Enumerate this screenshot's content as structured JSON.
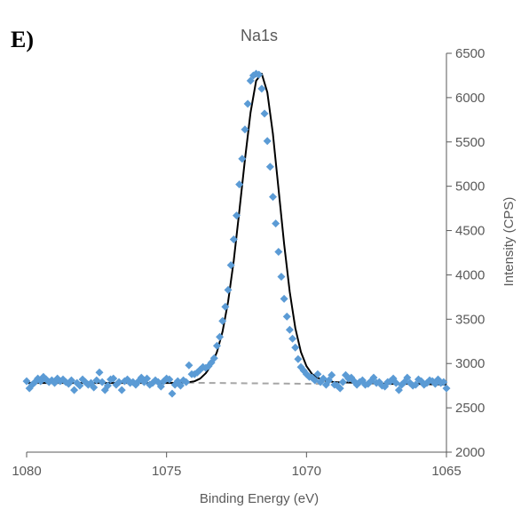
{
  "panel_label": "E)",
  "chart_data": {
    "type": "scatter",
    "title": "Na1s",
    "xlabel": "Binding Energy (eV)",
    "ylabel": "Intensity (CPS)",
    "xlim": [
      1080,
      1065
    ],
    "ylim": [
      2000,
      6500
    ],
    "x_reversed": true,
    "y_axis_position": "right",
    "x_ticks": [
      1080,
      1075,
      1070,
      1065
    ],
    "y_ticks": [
      2000,
      2500,
      3000,
      3500,
      4000,
      4500,
      5000,
      5500,
      6000,
      6500
    ],
    "grid": false,
    "legend": "none",
    "colors": {
      "data": "#5b9bd5",
      "fit": "#000000",
      "background": "#a6a6a6",
      "axis": "#595959"
    },
    "series": [
      {
        "type": "scatter",
        "marker": "diamond",
        "x": [
          1080.0,
          1079.9,
          1079.8,
          1079.7,
          1079.6,
          1079.5,
          1079.4,
          1079.3,
          1079.2,
          1079.1,
          1079.0,
          1078.9,
          1078.8,
          1078.7,
          1078.6,
          1078.5,
          1078.4,
          1078.3,
          1078.2,
          1078.1,
          1078.0,
          1077.9,
          1077.8,
          1077.7,
          1077.6,
          1077.5,
          1077.4,
          1077.3,
          1077.2,
          1077.1,
          1077.0,
          1076.9,
          1076.8,
          1076.7,
          1076.6,
          1076.5,
          1076.4,
          1076.3,
          1076.2,
          1076.1,
          1076.0,
          1075.9,
          1075.8,
          1075.7,
          1075.6,
          1075.5,
          1075.4,
          1075.3,
          1075.2,
          1075.1,
          1075.0,
          1074.9,
          1074.8,
          1074.7,
          1074.6,
          1074.5,
          1074.4,
          1074.3,
          1074.2,
          1074.1,
          1074.0,
          1073.9,
          1073.8,
          1073.7,
          1073.6,
          1073.5,
          1073.4,
          1073.3,
          1073.2,
          1073.1,
          1073.0,
          1072.9,
          1072.8,
          1072.7,
          1072.6,
          1072.5,
          1072.4,
          1072.3,
          1072.2,
          1072.1,
          1072.0,
          1071.9,
          1071.8,
          1071.7,
          1071.6,
          1071.5,
          1071.4,
          1071.3,
          1071.2,
          1071.1,
          1071.0,
          1070.9,
          1070.8,
          1070.7,
          1070.6,
          1070.5,
          1070.4,
          1070.3,
          1070.2,
          1070.1,
          1070.0,
          1069.9,
          1069.8,
          1069.7,
          1069.6,
          1069.5,
          1069.4,
          1069.3,
          1069.2,
          1069.1,
          1069.0,
          1068.9,
          1068.8,
          1068.7,
          1068.6,
          1068.5,
          1068.4,
          1068.3,
          1068.2,
          1068.1,
          1068.0,
          1067.9,
          1067.8,
          1067.7,
          1067.6,
          1067.5,
          1067.4,
          1067.3,
          1067.2,
          1067.1,
          1067.0,
          1066.9,
          1066.8,
          1066.7,
          1066.6,
          1066.5,
          1066.4,
          1066.3,
          1066.2,
          1066.1,
          1066.0,
          1065.9,
          1065.8,
          1065.7,
          1065.6,
          1065.5,
          1065.4,
          1065.3,
          1065.2,
          1065.1,
          1065.0
        ],
        "y": [
          2800,
          2720,
          2760,
          2790,
          2830,
          2800,
          2850,
          2820,
          2790,
          2810,
          2780,
          2830,
          2800,
          2820,
          2790,
          2770,
          2810,
          2700,
          2780,
          2750,
          2820,
          2790,
          2760,
          2780,
          2730,
          2810,
          2900,
          2790,
          2700,
          2750,
          2820,
          2830,
          2760,
          2790,
          2700,
          2800,
          2820,
          2780,
          2790,
          2760,
          2800,
          2840,
          2790,
          2830,
          2760,
          2780,
          2810,
          2790,
          2740,
          2800,
          2830,
          2820,
          2660,
          2760,
          2800,
          2750,
          2810,
          2790,
          2980,
          2880,
          2880,
          2900,
          2930,
          2960,
          2950,
          2970,
          3010,
          3060,
          3200,
          3300,
          3480,
          3640,
          3830,
          4110,
          4400,
          4670,
          5020,
          5310,
          5640,
          5930,
          6190,
          6250,
          6270,
          6260,
          6100,
          5820,
          5510,
          5220,
          4880,
          4580,
          4260,
          3980,
          3730,
          3530,
          3380,
          3280,
          3180,
          3050,
          2960,
          2920,
          2880,
          2850,
          2840,
          2810,
          2880,
          2790,
          2830,
          2760,
          2810,
          2870,
          2760,
          2750,
          2720,
          2790,
          2870,
          2830,
          2840,
          2800,
          2760,
          2790,
          2810,
          2760,
          2770,
          2800,
          2840,
          2780,
          2790,
          2750,
          2740,
          2790,
          2800,
          2830,
          2780,
          2700,
          2760,
          2790,
          2840,
          2780,
          2750,
          2760,
          2820,
          2800,
          2760,
          2780,
          2810,
          2800,
          2770,
          2820,
          2780,
          2790,
          2720
        ]
      },
      {
        "type": "line",
        "x": [
          1080,
          1079,
          1078,
          1077,
          1076,
          1075,
          1074.8,
          1074.4,
          1074.2,
          1074.0,
          1073.8,
          1073.6,
          1073.4,
          1073.2,
          1073.0,
          1072.8,
          1072.6,
          1072.4,
          1072.2,
          1072.0,
          1071.8,
          1071.6,
          1071.4,
          1071.2,
          1071.0,
          1070.8,
          1070.6,
          1070.4,
          1070.2,
          1070.0,
          1069.8,
          1069.6,
          1069.4,
          1069.0,
          1068,
          1067,
          1066,
          1065
        ],
        "y": [
          2780,
          2780,
          2780,
          2780,
          2780,
          2780,
          2780,
          2785,
          2790,
          2800,
          2830,
          2890,
          2980,
          3130,
          3360,
          3700,
          4160,
          4720,
          5300,
          5830,
          6190,
          6270,
          6060,
          5590,
          4970,
          4350,
          3810,
          3400,
          3130,
          2970,
          2880,
          2840,
          2810,
          2790,
          2780,
          2770,
          2770,
          2760
        ]
      },
      {
        "type": "line",
        "style": "dashed",
        "x": [
          1075.0,
          1069.4
        ],
        "y": [
          2785,
          2770
        ]
      }
    ]
  }
}
